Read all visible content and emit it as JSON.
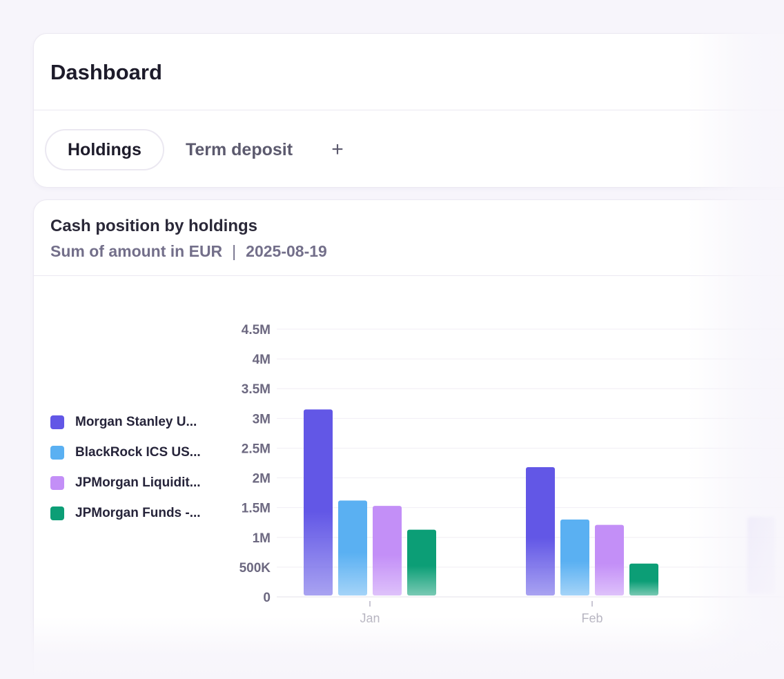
{
  "header": {
    "title": "Dashboard"
  },
  "tabs": [
    {
      "label": "Holdings",
      "active": true
    },
    {
      "label": "Term deposit",
      "active": false
    }
  ],
  "add_tab_label": "+",
  "chart_card": {
    "title": "Cash position by holdings",
    "subtitle_metric": "Sum of amount in EUR",
    "subtitle_separator": "|",
    "subtitle_date": "2025-08-19"
  },
  "legend": [
    {
      "label": "Morgan Stanley U...",
      "color": "#6257e6"
    },
    {
      "label": "BlackRock ICS US...",
      "color": "#5ab0f2"
    },
    {
      "label": "JPMorgan Liquidit...",
      "color": "#c38ff7"
    },
    {
      "label": "JPMorgan Funds -...",
      "color": "#0c9e76"
    }
  ],
  "chart_data": {
    "type": "bar",
    "categories": [
      "Jan",
      "Feb"
    ],
    "series": [
      {
        "name": "Morgan Stanley U...",
        "color": "#6257e6",
        "values": [
          3150000,
          2180000
        ]
      },
      {
        "name": "BlackRock ICS US...",
        "color": "#5ab0f2",
        "values": [
          1620000,
          1300000
        ]
      },
      {
        "name": "JPMorgan Liquidit...",
        "color": "#c38ff7",
        "values": [
          1530000,
          1210000
        ]
      },
      {
        "name": "JPMorgan Funds -...",
        "color": "#0c9e76",
        "values": [
          1130000,
          560000
        ]
      }
    ],
    "ylim": [
      0,
      4500000
    ],
    "y_ticks": [
      {
        "value": 0,
        "label": "0"
      },
      {
        "value": 500000,
        "label": "500K"
      },
      {
        "value": 1000000,
        "label": "1M"
      },
      {
        "value": 1500000,
        "label": "1.5M"
      },
      {
        "value": 2000000,
        "label": "2M"
      },
      {
        "value": 2500000,
        "label": "2.5M"
      },
      {
        "value": 3000000,
        "label": "3M"
      },
      {
        "value": 3500000,
        "label": "3.5M"
      },
      {
        "value": 4000000,
        "label": "4M"
      },
      {
        "value": 4500000,
        "label": "4.5M"
      }
    ],
    "grid": true,
    "legend_position": "left"
  }
}
